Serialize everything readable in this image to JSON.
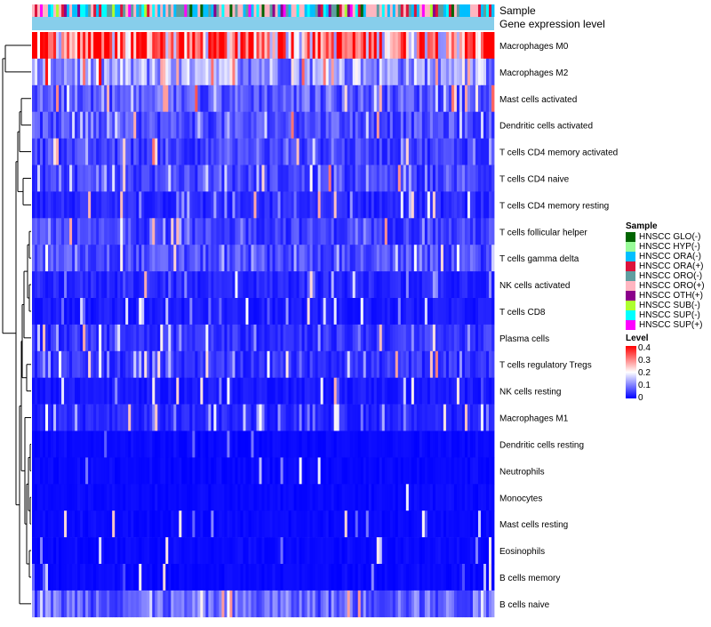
{
  "chart_data": {
    "type": "heatmap",
    "title": "",
    "annotation_tracks": [
      "Sample",
      "Gene expression level"
    ],
    "rows": [
      "Macrophages M0",
      "Macrophages M2",
      "Mast cells activated",
      "Dendritic cells activated",
      "T cells CD4 memory activated",
      "T cells CD4 naive",
      "T cells CD4 memory resting",
      "T cells follicular helper",
      "T cells gamma delta",
      "NK cells activated",
      "T cells CD8",
      "Plasma cells",
      "T cells regulatory  Tregs",
      "NK cells resting",
      "Macrophages M1",
      "Dendritic cells resting",
      "Neutrophils",
      "Monocytes",
      "Mast cells resting",
      "Eosinophils",
      "B cells memory",
      "B cells naive"
    ],
    "row_mean_level": [
      0.3,
      0.12,
      0.07,
      0.06,
      0.05,
      0.05,
      0.03,
      0.05,
      0.06,
      0.03,
      0.02,
      0.04,
      0.04,
      0.02,
      0.03,
      0.01,
      0.01,
      0.01,
      0.01,
      0.01,
      0.01,
      0.08
    ],
    "n_samples": 173,
    "color_scale": {
      "min": 0,
      "max": 0.4,
      "low": "#0000ff",
      "mid": "#ffffff",
      "high": "#ff0000"
    },
    "legend": {
      "sample_title": "Sample",
      "sample_groups": [
        {
          "label": "HNSCC GLO(-)",
          "color": "#006400"
        },
        {
          "label": "HNSCC HYP(-)",
          "color": "#98fb98"
        },
        {
          "label": "HNSCC ORA(-)",
          "color": "#00bfff"
        },
        {
          "label": "HNSCC ORA(+)",
          "color": "#dc143c"
        },
        {
          "label": "HNSCC ORO(-)",
          "color": "#5f9ea0"
        },
        {
          "label": "HNSCC ORO(+)",
          "color": "#ffb6c1"
        },
        {
          "label": "HNSCC OTH(+)",
          "color": "#8b008b"
        },
        {
          "label": "HNSCC SUB(-)",
          "color": "#adff2f"
        },
        {
          "label": "HNSCC SUP(-)",
          "color": "#00ffff"
        },
        {
          "label": "HNSCC SUP(+)",
          "color": "#ff00ff"
        }
      ],
      "level_title": "Level",
      "level_ticks": [
        "0.4",
        "0.3",
        "0.2",
        "0.1",
        "0"
      ]
    },
    "gene_expression_track_color": "#87ceeb",
    "dendrogram_position": "left",
    "legend_position": "right"
  }
}
